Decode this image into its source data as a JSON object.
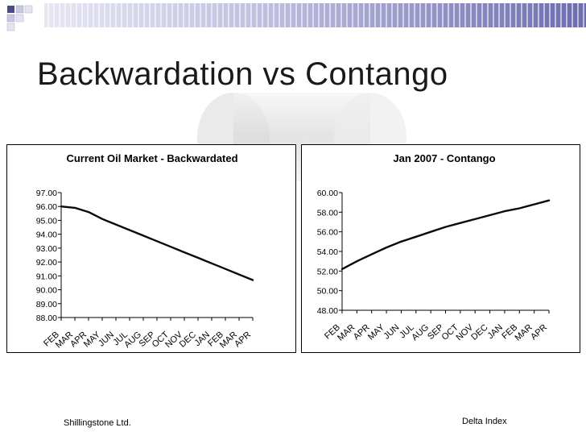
{
  "slide": {
    "title": "Backwardation vs Contango",
    "footer_left": "Shillingstone Ltd.",
    "footer_right": "Delta Index"
  },
  "colors": {
    "band": "#6c6cab",
    "band_light": "#c9c9e6",
    "line": "#0a0a0a"
  },
  "chart_data": [
    {
      "type": "line",
      "title": "Current Oil Market - Backwardated",
      "categories": [
        "FEB",
        "MAR",
        "APR",
        "MAY",
        "JUN",
        "JUL",
        "AUG",
        "SEP",
        "OCT",
        "NOV",
        "DEC",
        "JAN",
        "FEB",
        "MAR",
        "APR"
      ],
      "series": [
        {
          "values": [
            96.0,
            95.9,
            95.6,
            95.1,
            94.7,
            94.3,
            93.9,
            93.5,
            93.1,
            92.7,
            92.3,
            91.9,
            91.5,
            91.1,
            90.7
          ]
        }
      ],
      "ylim": [
        88,
        97
      ],
      "yticks": [
        "97.00",
        "96.00",
        "95.00",
        "94.00",
        "93.00",
        "92.00",
        "91.00",
        "90.00",
        "89.00",
        "88.00"
      ],
      "grid": false,
      "legend": "none"
    },
    {
      "type": "line",
      "title": "Jan 2007 - Contango",
      "categories": [
        "FEB",
        "MAR",
        "APR",
        "MAY",
        "JUN",
        "JUL",
        "AUG",
        "SEP",
        "OCT",
        "NOV",
        "DEC",
        "JAN",
        "FEB",
        "MAR",
        "APR"
      ],
      "series": [
        {
          "values": [
            52.2,
            53.0,
            53.7,
            54.4,
            55.0,
            55.5,
            56.0,
            56.5,
            56.9,
            57.3,
            57.7,
            58.1,
            58.4,
            58.8,
            59.2
          ]
        }
      ],
      "ylim": [
        48,
        60
      ],
      "yticks": [
        "60.00",
        "58.00",
        "56.00",
        "54.00",
        "52.00",
        "50.00",
        "48.00"
      ],
      "grid": false,
      "legend": "none"
    }
  ]
}
